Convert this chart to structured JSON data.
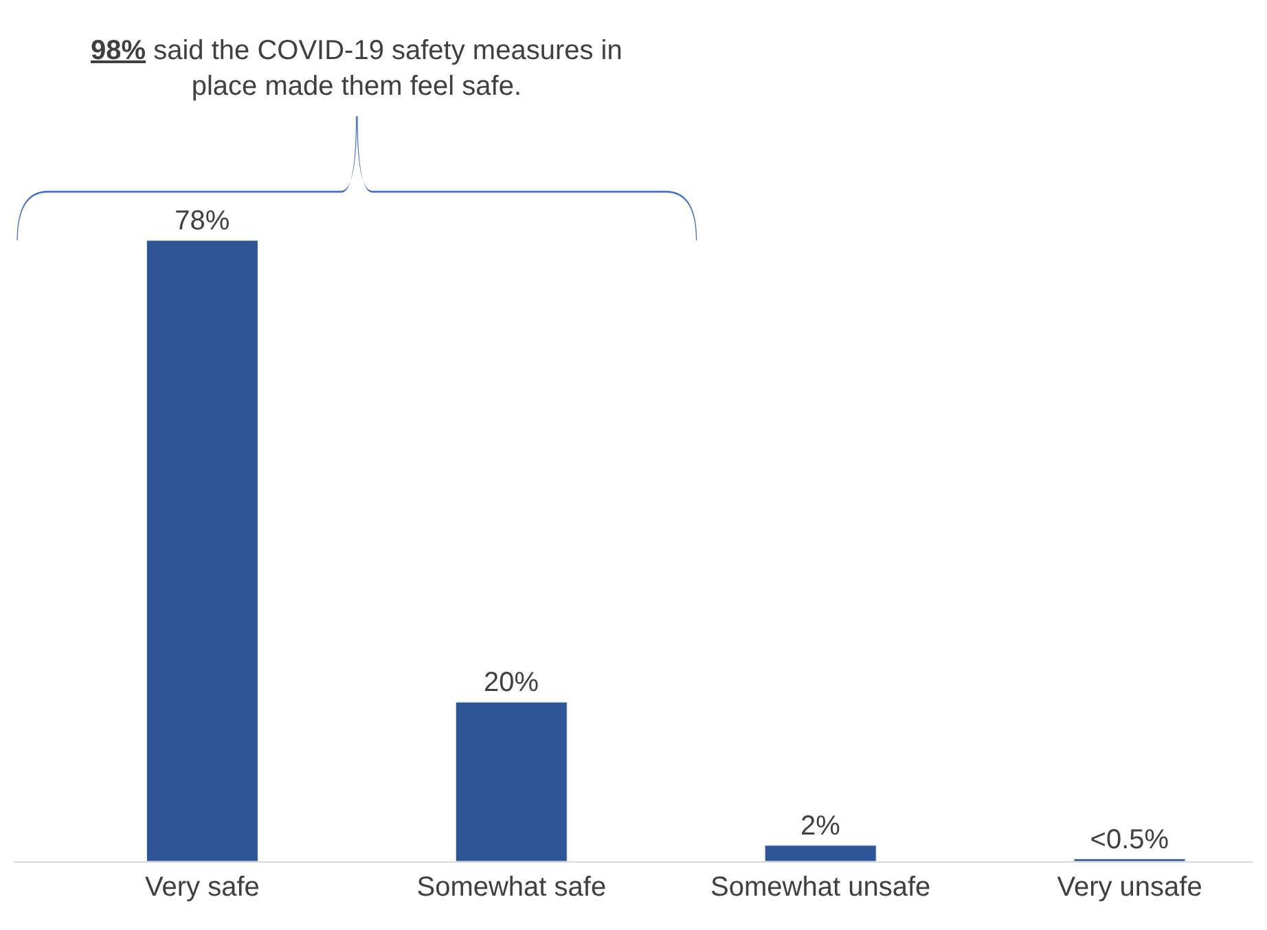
{
  "chart_data": {
    "type": "bar",
    "categories": [
      "Very safe",
      "Somewhat safe",
      "Somewhat unsafe",
      "Very unsafe"
    ],
    "values": [
      78,
      20,
      2,
      0.3
    ],
    "value_labels": [
      "78%",
      "20%",
      "2%",
      "<0.5%"
    ],
    "color": "#2f5597",
    "annotations": [
      "98% said the COVID-19 safety measures in place made them feel safe."
    ]
  }
}
